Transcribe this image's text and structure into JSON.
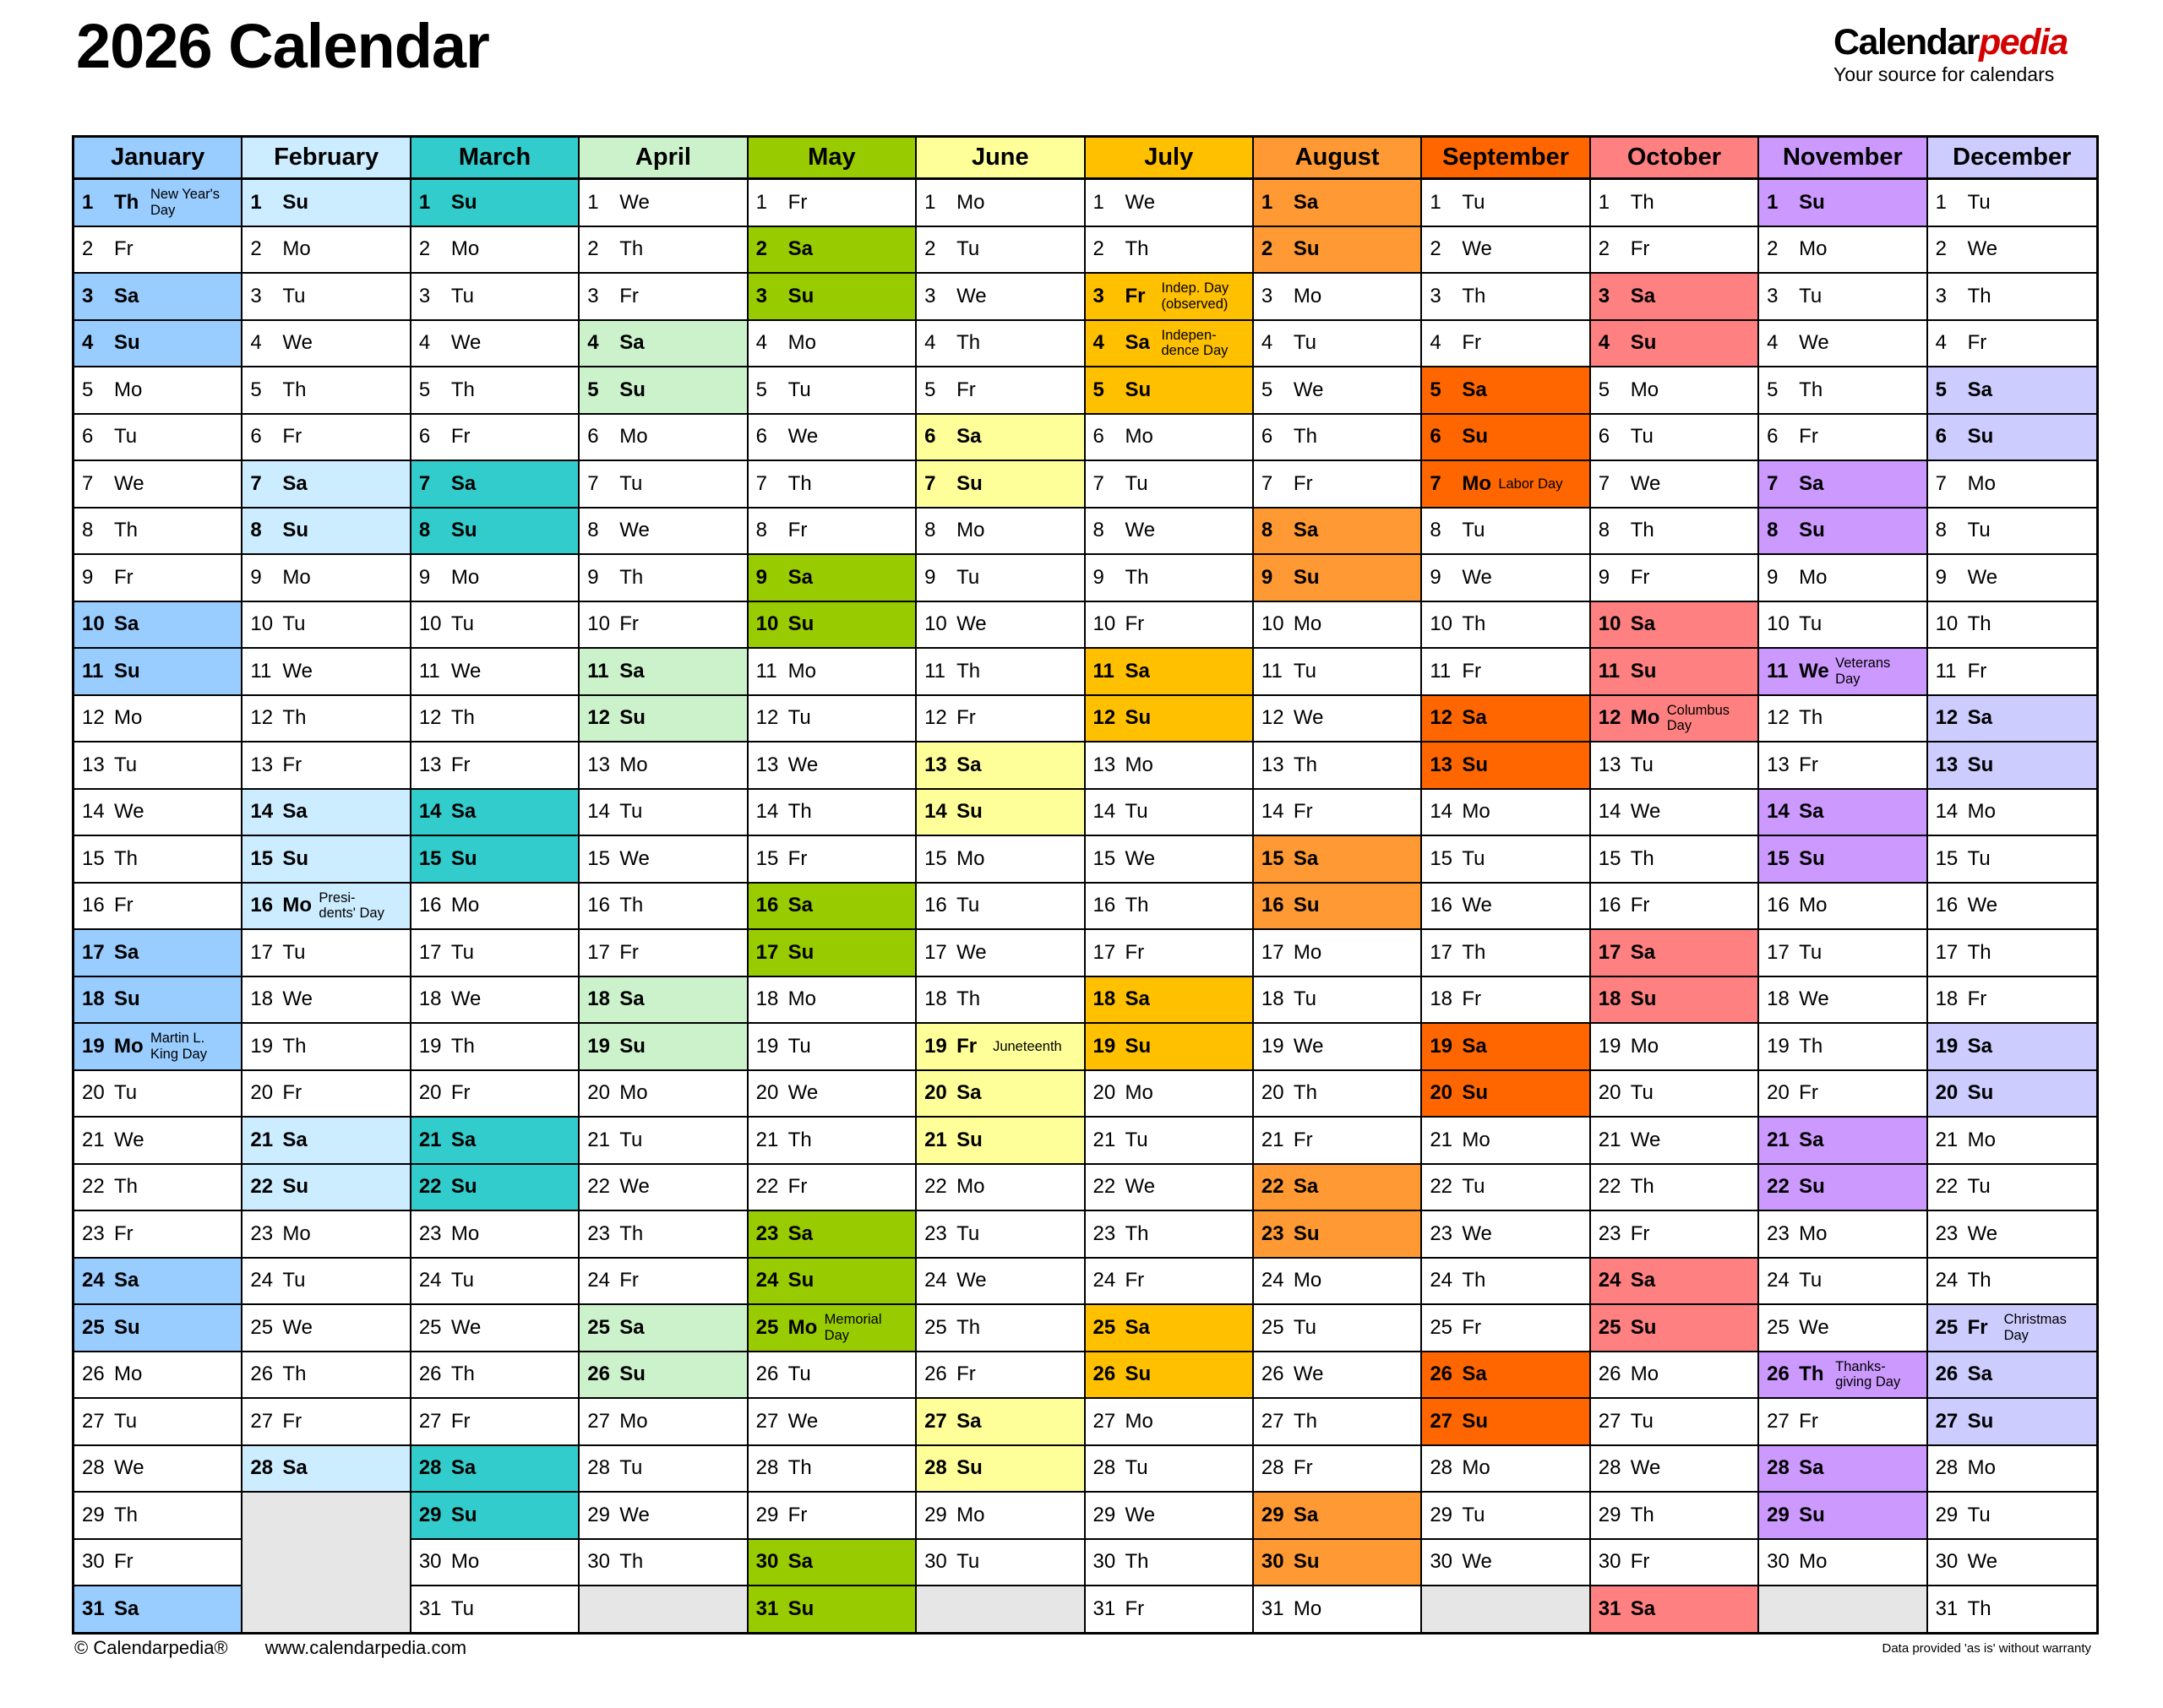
{
  "title": "2026 Calendar",
  "logo": {
    "brand_black": "Calendar",
    "brand_red": "pedia",
    "tagline": "Your source for calendars"
  },
  "footer": {
    "copyright": "© Calendarpedia®",
    "url": "www.calendarpedia.com",
    "disclaimer": "Data provided 'as is' without warranty"
  },
  "colors": {
    "blank": "#E6E6E6",
    "border": "#000000",
    "logo_red": "#D40000"
  },
  "months": [
    {
      "name": "January",
      "color": "#99CCFF",
      "days": [
        [
          1,
          "Th",
          "New Year's\nDay"
        ],
        [
          2,
          "Fr"
        ],
        [
          3,
          "Sa"
        ],
        [
          4,
          "Su"
        ],
        [
          5,
          "Mo"
        ],
        [
          6,
          "Tu"
        ],
        [
          7,
          "We"
        ],
        [
          8,
          "Th"
        ],
        [
          9,
          "Fr"
        ],
        [
          10,
          "Sa"
        ],
        [
          11,
          "Su"
        ],
        [
          12,
          "Mo"
        ],
        [
          13,
          "Tu"
        ],
        [
          14,
          "We"
        ],
        [
          15,
          "Th"
        ],
        [
          16,
          "Fr"
        ],
        [
          17,
          "Sa"
        ],
        [
          18,
          "Su"
        ],
        [
          19,
          "Mo",
          "Martin L.\nKing Day"
        ],
        [
          20,
          "Tu"
        ],
        [
          21,
          "We"
        ],
        [
          22,
          "Th"
        ],
        [
          23,
          "Fr"
        ],
        [
          24,
          "Sa"
        ],
        [
          25,
          "Su"
        ],
        [
          26,
          "Mo"
        ],
        [
          27,
          "Tu"
        ],
        [
          28,
          "We"
        ],
        [
          29,
          "Th"
        ],
        [
          30,
          "Fr"
        ],
        [
          31,
          "Sa"
        ]
      ]
    },
    {
      "name": "February",
      "color": "#CCECFF",
      "days": [
        [
          1,
          "Su"
        ],
        [
          2,
          "Mo"
        ],
        [
          3,
          "Tu"
        ],
        [
          4,
          "We"
        ],
        [
          5,
          "Th"
        ],
        [
          6,
          "Fr"
        ],
        [
          7,
          "Sa"
        ],
        [
          8,
          "Su"
        ],
        [
          9,
          "Mo"
        ],
        [
          10,
          "Tu"
        ],
        [
          11,
          "We"
        ],
        [
          12,
          "Th"
        ],
        [
          13,
          "Fr"
        ],
        [
          14,
          "Sa"
        ],
        [
          15,
          "Su"
        ],
        [
          16,
          "Mo",
          "Presi-\ndents' Day"
        ],
        [
          17,
          "Tu"
        ],
        [
          18,
          "We"
        ],
        [
          19,
          "Th"
        ],
        [
          20,
          "Fr"
        ],
        [
          21,
          "Sa"
        ],
        [
          22,
          "Su"
        ],
        [
          23,
          "Mo"
        ],
        [
          24,
          "Tu"
        ],
        [
          25,
          "We"
        ],
        [
          26,
          "Th"
        ],
        [
          27,
          "Fr"
        ],
        [
          28,
          "Sa"
        ]
      ]
    },
    {
      "name": "March",
      "color": "#33CCCC",
      "days": [
        [
          1,
          "Su"
        ],
        [
          2,
          "Mo"
        ],
        [
          3,
          "Tu"
        ],
        [
          4,
          "We"
        ],
        [
          5,
          "Th"
        ],
        [
          6,
          "Fr"
        ],
        [
          7,
          "Sa"
        ],
        [
          8,
          "Su"
        ],
        [
          9,
          "Mo"
        ],
        [
          10,
          "Tu"
        ],
        [
          11,
          "We"
        ],
        [
          12,
          "Th"
        ],
        [
          13,
          "Fr"
        ],
        [
          14,
          "Sa"
        ],
        [
          15,
          "Su"
        ],
        [
          16,
          "Mo"
        ],
        [
          17,
          "Tu"
        ],
        [
          18,
          "We"
        ],
        [
          19,
          "Th"
        ],
        [
          20,
          "Fr"
        ],
        [
          21,
          "Sa"
        ],
        [
          22,
          "Su"
        ],
        [
          23,
          "Mo"
        ],
        [
          24,
          "Tu"
        ],
        [
          25,
          "We"
        ],
        [
          26,
          "Th"
        ],
        [
          27,
          "Fr"
        ],
        [
          28,
          "Sa"
        ],
        [
          29,
          "Su"
        ],
        [
          30,
          "Mo"
        ],
        [
          31,
          "Tu"
        ]
      ]
    },
    {
      "name": "April",
      "color": "#CCF2CC",
      "days": [
        [
          1,
          "We"
        ],
        [
          2,
          "Th"
        ],
        [
          3,
          "Fr"
        ],
        [
          4,
          "Sa"
        ],
        [
          5,
          "Su"
        ],
        [
          6,
          "Mo"
        ],
        [
          7,
          "Tu"
        ],
        [
          8,
          "We"
        ],
        [
          9,
          "Th"
        ],
        [
          10,
          "Fr"
        ],
        [
          11,
          "Sa"
        ],
        [
          12,
          "Su"
        ],
        [
          13,
          "Mo"
        ],
        [
          14,
          "Tu"
        ],
        [
          15,
          "We"
        ],
        [
          16,
          "Th"
        ],
        [
          17,
          "Fr"
        ],
        [
          18,
          "Sa"
        ],
        [
          19,
          "Su"
        ],
        [
          20,
          "Mo"
        ],
        [
          21,
          "Tu"
        ],
        [
          22,
          "We"
        ],
        [
          23,
          "Th"
        ],
        [
          24,
          "Fr"
        ],
        [
          25,
          "Sa"
        ],
        [
          26,
          "Su"
        ],
        [
          27,
          "Mo"
        ],
        [
          28,
          "Tu"
        ],
        [
          29,
          "We"
        ],
        [
          30,
          "Th"
        ]
      ]
    },
    {
      "name": "May",
      "color": "#99CC00",
      "days": [
        [
          1,
          "Fr"
        ],
        [
          2,
          "Sa"
        ],
        [
          3,
          "Su"
        ],
        [
          4,
          "Mo"
        ],
        [
          5,
          "Tu"
        ],
        [
          6,
          "We"
        ],
        [
          7,
          "Th"
        ],
        [
          8,
          "Fr"
        ],
        [
          9,
          "Sa"
        ],
        [
          10,
          "Su"
        ],
        [
          11,
          "Mo"
        ],
        [
          12,
          "Tu"
        ],
        [
          13,
          "We"
        ],
        [
          14,
          "Th"
        ],
        [
          15,
          "Fr"
        ],
        [
          16,
          "Sa"
        ],
        [
          17,
          "Su"
        ],
        [
          18,
          "Mo"
        ],
        [
          19,
          "Tu"
        ],
        [
          20,
          "We"
        ],
        [
          21,
          "Th"
        ],
        [
          22,
          "Fr"
        ],
        [
          23,
          "Sa"
        ],
        [
          24,
          "Su"
        ],
        [
          25,
          "Mo",
          "Memorial\nDay"
        ],
        [
          26,
          "Tu"
        ],
        [
          27,
          "We"
        ],
        [
          28,
          "Th"
        ],
        [
          29,
          "Fr"
        ],
        [
          30,
          "Sa"
        ],
        [
          31,
          "Su"
        ]
      ]
    },
    {
      "name": "June",
      "color": "#FFFF99",
      "days": [
        [
          1,
          "Mo"
        ],
        [
          2,
          "Tu"
        ],
        [
          3,
          "We"
        ],
        [
          4,
          "Th"
        ],
        [
          5,
          "Fr"
        ],
        [
          6,
          "Sa"
        ],
        [
          7,
          "Su"
        ],
        [
          8,
          "Mo"
        ],
        [
          9,
          "Tu"
        ],
        [
          10,
          "We"
        ],
        [
          11,
          "Th"
        ],
        [
          12,
          "Fr"
        ],
        [
          13,
          "Sa"
        ],
        [
          14,
          "Su"
        ],
        [
          15,
          "Mo"
        ],
        [
          16,
          "Tu"
        ],
        [
          17,
          "We"
        ],
        [
          18,
          "Th"
        ],
        [
          19,
          "Fr",
          "Juneteenth"
        ],
        [
          20,
          "Sa"
        ],
        [
          21,
          "Su"
        ],
        [
          22,
          "Mo"
        ],
        [
          23,
          "Tu"
        ],
        [
          24,
          "We"
        ],
        [
          25,
          "Th"
        ],
        [
          26,
          "Fr"
        ],
        [
          27,
          "Sa"
        ],
        [
          28,
          "Su"
        ],
        [
          29,
          "Mo"
        ],
        [
          30,
          "Tu"
        ]
      ]
    },
    {
      "name": "July",
      "color": "#FFC000",
      "days": [
        [
          1,
          "We"
        ],
        [
          2,
          "Th"
        ],
        [
          3,
          "Fr",
          "Indep. Day\n(observed)"
        ],
        [
          4,
          "Sa",
          "Indepen-\ndence Day"
        ],
        [
          5,
          "Su"
        ],
        [
          6,
          "Mo"
        ],
        [
          7,
          "Tu"
        ],
        [
          8,
          "We"
        ],
        [
          9,
          "Th"
        ],
        [
          10,
          "Fr"
        ],
        [
          11,
          "Sa"
        ],
        [
          12,
          "Su"
        ],
        [
          13,
          "Mo"
        ],
        [
          14,
          "Tu"
        ],
        [
          15,
          "We"
        ],
        [
          16,
          "Th"
        ],
        [
          17,
          "Fr"
        ],
        [
          18,
          "Sa"
        ],
        [
          19,
          "Su"
        ],
        [
          20,
          "Mo"
        ],
        [
          21,
          "Tu"
        ],
        [
          22,
          "We"
        ],
        [
          23,
          "Th"
        ],
        [
          24,
          "Fr"
        ],
        [
          25,
          "Sa"
        ],
        [
          26,
          "Su"
        ],
        [
          27,
          "Mo"
        ],
        [
          28,
          "Tu"
        ],
        [
          29,
          "We"
        ],
        [
          30,
          "Th"
        ],
        [
          31,
          "Fr"
        ]
      ]
    },
    {
      "name": "August",
      "color": "#FF9933",
      "days": [
        [
          1,
          "Sa"
        ],
        [
          2,
          "Su"
        ],
        [
          3,
          "Mo"
        ],
        [
          4,
          "Tu"
        ],
        [
          5,
          "We"
        ],
        [
          6,
          "Th"
        ],
        [
          7,
          "Fr"
        ],
        [
          8,
          "Sa"
        ],
        [
          9,
          "Su"
        ],
        [
          10,
          "Mo"
        ],
        [
          11,
          "Tu"
        ],
        [
          12,
          "We"
        ],
        [
          13,
          "Th"
        ],
        [
          14,
          "Fr"
        ],
        [
          15,
          "Sa"
        ],
        [
          16,
          "Su"
        ],
        [
          17,
          "Mo"
        ],
        [
          18,
          "Tu"
        ],
        [
          19,
          "We"
        ],
        [
          20,
          "Th"
        ],
        [
          21,
          "Fr"
        ],
        [
          22,
          "Sa"
        ],
        [
          23,
          "Su"
        ],
        [
          24,
          "Mo"
        ],
        [
          25,
          "Tu"
        ],
        [
          26,
          "We"
        ],
        [
          27,
          "Th"
        ],
        [
          28,
          "Fr"
        ],
        [
          29,
          "Sa"
        ],
        [
          30,
          "Su"
        ],
        [
          31,
          "Mo"
        ]
      ]
    },
    {
      "name": "September",
      "color": "#FF6600",
      "days": [
        [
          1,
          "Tu"
        ],
        [
          2,
          "We"
        ],
        [
          3,
          "Th"
        ],
        [
          4,
          "Fr"
        ],
        [
          5,
          "Sa"
        ],
        [
          6,
          "Su"
        ],
        [
          7,
          "Mo",
          "Labor Day"
        ],
        [
          8,
          "Tu"
        ],
        [
          9,
          "We"
        ],
        [
          10,
          "Th"
        ],
        [
          11,
          "Fr"
        ],
        [
          12,
          "Sa"
        ],
        [
          13,
          "Su"
        ],
        [
          14,
          "Mo"
        ],
        [
          15,
          "Tu"
        ],
        [
          16,
          "We"
        ],
        [
          17,
          "Th"
        ],
        [
          18,
          "Fr"
        ],
        [
          19,
          "Sa"
        ],
        [
          20,
          "Su"
        ],
        [
          21,
          "Mo"
        ],
        [
          22,
          "Tu"
        ],
        [
          23,
          "We"
        ],
        [
          24,
          "Th"
        ],
        [
          25,
          "Fr"
        ],
        [
          26,
          "Sa"
        ],
        [
          27,
          "Su"
        ],
        [
          28,
          "Mo"
        ],
        [
          29,
          "Tu"
        ],
        [
          30,
          "We"
        ]
      ]
    },
    {
      "name": "October",
      "color": "#FF8080",
      "days": [
        [
          1,
          "Th"
        ],
        [
          2,
          "Fr"
        ],
        [
          3,
          "Sa"
        ],
        [
          4,
          "Su"
        ],
        [
          5,
          "Mo"
        ],
        [
          6,
          "Tu"
        ],
        [
          7,
          "We"
        ],
        [
          8,
          "Th"
        ],
        [
          9,
          "Fr"
        ],
        [
          10,
          "Sa"
        ],
        [
          11,
          "Su"
        ],
        [
          12,
          "Mo",
          "Columbus\nDay"
        ],
        [
          13,
          "Tu"
        ],
        [
          14,
          "We"
        ],
        [
          15,
          "Th"
        ],
        [
          16,
          "Fr"
        ],
        [
          17,
          "Sa"
        ],
        [
          18,
          "Su"
        ],
        [
          19,
          "Mo"
        ],
        [
          20,
          "Tu"
        ],
        [
          21,
          "We"
        ],
        [
          22,
          "Th"
        ],
        [
          23,
          "Fr"
        ],
        [
          24,
          "Sa"
        ],
        [
          25,
          "Su"
        ],
        [
          26,
          "Mo"
        ],
        [
          27,
          "Tu"
        ],
        [
          28,
          "We"
        ],
        [
          29,
          "Th"
        ],
        [
          30,
          "Fr"
        ],
        [
          31,
          "Sa"
        ]
      ]
    },
    {
      "name": "November",
      "color": "#CC99FF",
      "days": [
        [
          1,
          "Su"
        ],
        [
          2,
          "Mo"
        ],
        [
          3,
          "Tu"
        ],
        [
          4,
          "We"
        ],
        [
          5,
          "Th"
        ],
        [
          6,
          "Fr"
        ],
        [
          7,
          "Sa"
        ],
        [
          8,
          "Su"
        ],
        [
          9,
          "Mo"
        ],
        [
          10,
          "Tu"
        ],
        [
          11,
          "We",
          "Veterans\nDay"
        ],
        [
          12,
          "Th"
        ],
        [
          13,
          "Fr"
        ],
        [
          14,
          "Sa"
        ],
        [
          15,
          "Su"
        ],
        [
          16,
          "Mo"
        ],
        [
          17,
          "Tu"
        ],
        [
          18,
          "We"
        ],
        [
          19,
          "Th"
        ],
        [
          20,
          "Fr"
        ],
        [
          21,
          "Sa"
        ],
        [
          22,
          "Su"
        ],
        [
          23,
          "Mo"
        ],
        [
          24,
          "Tu"
        ],
        [
          25,
          "We"
        ],
        [
          26,
          "Th",
          "Thanks-\ngiving Day"
        ],
        [
          27,
          "Fr"
        ],
        [
          28,
          "Sa"
        ],
        [
          29,
          "Su"
        ],
        [
          30,
          "Mo"
        ]
      ]
    },
    {
      "name": "December",
      "color": "#CCCCFF",
      "days": [
        [
          1,
          "Tu"
        ],
        [
          2,
          "We"
        ],
        [
          3,
          "Th"
        ],
        [
          4,
          "Fr"
        ],
        [
          5,
          "Sa"
        ],
        [
          6,
          "Su"
        ],
        [
          7,
          "Mo"
        ],
        [
          8,
          "Tu"
        ],
        [
          9,
          "We"
        ],
        [
          10,
          "Th"
        ],
        [
          11,
          "Fr"
        ],
        [
          12,
          "Sa"
        ],
        [
          13,
          "Su"
        ],
        [
          14,
          "Mo"
        ],
        [
          15,
          "Tu"
        ],
        [
          16,
          "We"
        ],
        [
          17,
          "Th"
        ],
        [
          18,
          "Fr"
        ],
        [
          19,
          "Sa"
        ],
        [
          20,
          "Su"
        ],
        [
          21,
          "Mo"
        ],
        [
          22,
          "Tu"
        ],
        [
          23,
          "We"
        ],
        [
          24,
          "Th"
        ],
        [
          25,
          "Fr",
          "Christmas\nDay"
        ],
        [
          26,
          "Sa"
        ],
        [
          27,
          "Su"
        ],
        [
          28,
          "Mo"
        ],
        [
          29,
          "Tu"
        ],
        [
          30,
          "We"
        ],
        [
          31,
          "Th"
        ]
      ]
    }
  ]
}
